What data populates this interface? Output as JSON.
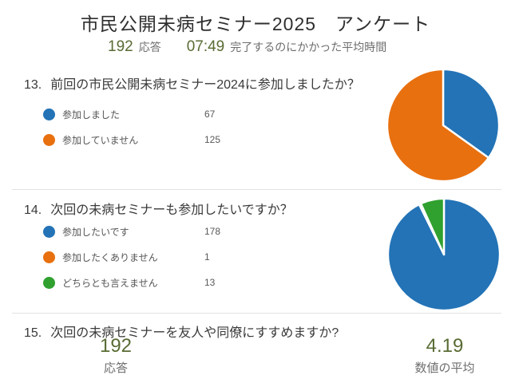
{
  "page": {
    "title": "市民公開未病セミナー2025　アンケート"
  },
  "summary": {
    "responses_value": "192",
    "responses_label": "応答",
    "avg_time_value": "07:49",
    "avg_time_label": "完了するのにかかった平均時間"
  },
  "questions": [
    {
      "number": "13.",
      "text": "前回の市民公開未病セミナー2024に参加しましたか？",
      "options": [
        {
          "label": "参加しました",
          "count": "67",
          "color": "#2373b6"
        },
        {
          "label": "参加していません",
          "count": "125",
          "color": "#e8700f"
        }
      ]
    },
    {
      "number": "14.",
      "text": "次回の未病セミナーも参加したいですか？",
      "options": [
        {
          "label": "参加したいです",
          "count": "178",
          "color": "#2373b6"
        },
        {
          "label": "参加したくありません",
          "count": "1",
          "color": "#e8700f"
        },
        {
          "label": "どちらとも言えません",
          "count": "13",
          "color": "#30a02f"
        }
      ]
    },
    {
      "number": "15.",
      "text": "次回の未病セミナーを友人や同僚にすすめますか?",
      "responses_value": "192",
      "responses_label": "応答",
      "average_value": "4.19",
      "average_label": "数値の平均"
    }
  ],
  "chart_data": [
    {
      "type": "pie",
      "title": "前回の市民公開未病セミナー2024に参加しましたか？",
      "categories": [
        "参加しました",
        "参加していません"
      ],
      "values": [
        67,
        125
      ],
      "colors": [
        "#2373b6",
        "#e8700f"
      ],
      "total": 192,
      "start_angle_deg": 0,
      "direction": "clockwise",
      "legend_position": "left",
      "slice_gap_color": "#ffffff"
    },
    {
      "type": "pie",
      "title": "次回の未病セミナーも参加したいですか？",
      "categories": [
        "参加したいです",
        "参加したくありません",
        "どちらとも言えません"
      ],
      "values": [
        178,
        1,
        13
      ],
      "colors": [
        "#2373b6",
        "#e8700f",
        "#30a02f"
      ],
      "total": 192,
      "start_angle_deg": 0,
      "direction": "clockwise",
      "legend_position": "left",
      "slice_gap_color": "#ffffff"
    }
  ],
  "colors": {
    "stat_number": "#596b33",
    "stat_label": "#6e6e6e",
    "heading_text": "#3a3a3a",
    "divider": "#e3e3e3"
  }
}
